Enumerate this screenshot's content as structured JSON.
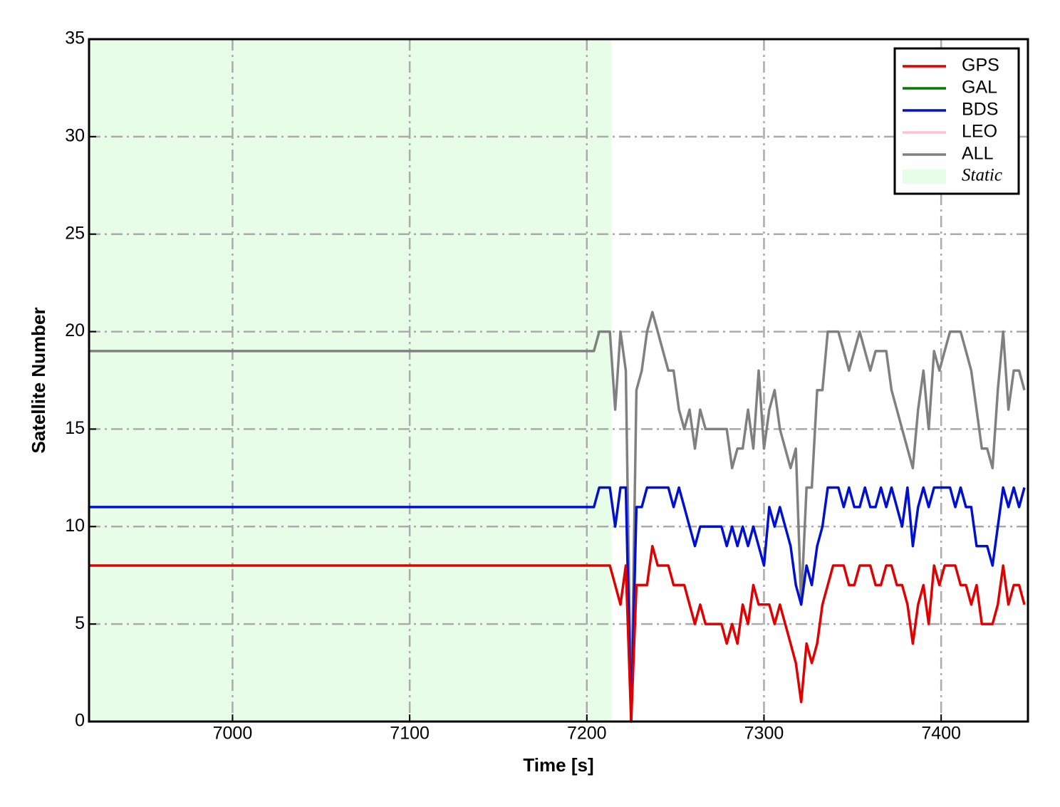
{
  "chart_data": {
    "type": "line",
    "xlabel": "Time [s]",
    "ylabel": "Satellite Number",
    "xlim": [
      6919,
      7449
    ],
    "ylim": [
      0,
      35
    ],
    "xticks": [
      7000,
      7100,
      7200,
      7300,
      7400
    ],
    "yticks": [
      0,
      5,
      10,
      15,
      20,
      25,
      30,
      35
    ],
    "grid": true,
    "legend": "upper right",
    "span": {
      "name": "Static",
      "x": [
        6919,
        7214
      ],
      "color": "#e8fde8"
    },
    "x": [
      6919,
      7204,
      7207,
      7210,
      7213,
      7216,
      7219,
      7222,
      7225,
      7228,
      7231,
      7234,
      7237,
      7240,
      7243,
      7246,
      7249,
      7252,
      7255,
      7258,
      7261,
      7264,
      7267,
      7270,
      7273,
      7276,
      7279,
      7282,
      7285,
      7288,
      7291,
      7294,
      7297,
      7300,
      7303,
      7306,
      7309,
      7312,
      7315,
      7318,
      7321,
      7324,
      7327,
      7330,
      7333,
      7336,
      7339,
      7342,
      7345,
      7348,
      7351,
      7354,
      7357,
      7360,
      7363,
      7366,
      7369,
      7372,
      7375,
      7378,
      7381,
      7384,
      7387,
      7390,
      7393,
      7396,
      7399,
      7402,
      7405,
      7408,
      7411,
      7414,
      7417,
      7420,
      7423,
      7426,
      7429,
      7432,
      7435,
      7438,
      7441,
      7444,
      7447
    ],
    "series": [
      {
        "name": "GPS",
        "color": "#e00000",
        "values": [
          8,
          8,
          8,
          8,
          8,
          7,
          6,
          8,
          0,
          7,
          7,
          7,
          9,
          8,
          8,
          8,
          7,
          7,
          7,
          6,
          5,
          6,
          5,
          5,
          5,
          5,
          4,
          5,
          4,
          6,
          5,
          7,
          6,
          6,
          6,
          5,
          6,
          5,
          4,
          3,
          1,
          4,
          3,
          4,
          6,
          7,
          8,
          8,
          8,
          7,
          7,
          8,
          8,
          8,
          7,
          7,
          8,
          8,
          7,
          7,
          6,
          4,
          6,
          7,
          5,
          8,
          7,
          8,
          8,
          8,
          7,
          7,
          6,
          7,
          5,
          5,
          5,
          6,
          8,
          6,
          7,
          7,
          6
        ]
      },
      {
        "name": "GAL",
        "color": "#007a00",
        "values": [
          null,
          null,
          null,
          null,
          null,
          null,
          null,
          null,
          null,
          null,
          null,
          null,
          null,
          null,
          null,
          null,
          null,
          null,
          null,
          null,
          null,
          null,
          null,
          null,
          null,
          null,
          null,
          null,
          null,
          null,
          null,
          null,
          null,
          null,
          null,
          null,
          null,
          null,
          null,
          null,
          null,
          null,
          null,
          null,
          null,
          null,
          null,
          null,
          null,
          null,
          null,
          null,
          null,
          null,
          null,
          null,
          null,
          null,
          null,
          null,
          null,
          null,
          null,
          null,
          null,
          null,
          null,
          null,
          null,
          null,
          null,
          null,
          null,
          null,
          null,
          null,
          null,
          null,
          null,
          null,
          null,
          null,
          null
        ]
      },
      {
        "name": "BDS",
        "color": "#0010d0",
        "values": [
          11,
          11,
          12,
          12,
          12,
          10,
          12,
          12,
          0,
          11,
          11,
          12,
          12,
          12,
          12,
          12,
          11,
          12,
          11,
          10,
          9,
          10,
          10,
          10,
          10,
          10,
          9,
          10,
          9,
          10,
          9,
          10,
          9,
          8,
          11,
          10,
          11,
          10,
          9,
          7,
          6,
          8,
          7,
          9,
          10,
          12,
          12,
          12,
          11,
          12,
          11,
          11,
          12,
          11,
          11,
          12,
          11,
          12,
          11,
          10,
          12,
          9,
          11,
          12,
          11,
          12,
          12,
          12,
          12,
          11,
          12,
          11,
          11,
          9,
          9,
          9,
          8,
          10,
          12,
          11,
          12,
          11,
          12
        ]
      },
      {
        "name": "LEO",
        "color": "#ffc0cb",
        "values": [
          null,
          null,
          null,
          null,
          null,
          null,
          null,
          null,
          null,
          null,
          null,
          null,
          null,
          null,
          null,
          null,
          null,
          null,
          null,
          null,
          null,
          null,
          null,
          null,
          null,
          null,
          null,
          null,
          null,
          null,
          null,
          null,
          null,
          null,
          null,
          null,
          null,
          null,
          null,
          null,
          null,
          null,
          null,
          null,
          null,
          null,
          null,
          null,
          null,
          null,
          null,
          null,
          null,
          null,
          null,
          null,
          null,
          null,
          null,
          null,
          null,
          null,
          null,
          null,
          null,
          null,
          null,
          null,
          null,
          null,
          null,
          null,
          null,
          null,
          null,
          null,
          null,
          null,
          null,
          null,
          null,
          null,
          null
        ]
      },
      {
        "name": "ALL",
        "color": "#808080",
        "values": [
          19,
          19,
          20,
          20,
          20,
          16,
          20,
          18,
          0,
          17,
          18,
          20,
          21,
          20,
          19,
          18,
          18,
          16,
          15,
          16,
          14,
          16,
          15,
          15,
          15,
          15,
          15,
          13,
          14,
          14,
          16,
          14,
          18,
          14,
          16,
          17,
          15,
          14,
          13,
          14,
          6,
          12,
          12,
          17,
          17,
          20,
          20,
          20,
          19,
          18,
          19,
          20,
          19,
          18,
          19,
          19,
          19,
          17,
          16,
          15,
          14,
          13,
          16,
          18,
          15,
          19,
          18,
          19,
          20,
          20,
          20,
          19,
          18,
          16,
          14,
          14,
          13,
          17,
          20,
          16,
          18,
          18,
          17
        ]
      }
    ]
  }
}
